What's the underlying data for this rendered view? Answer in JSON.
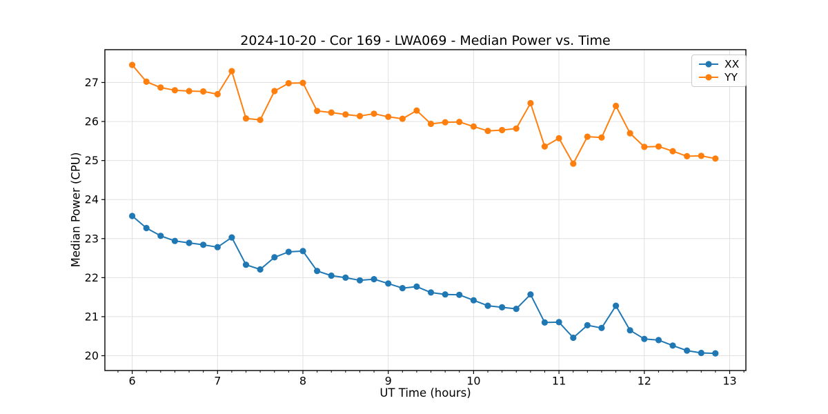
{
  "chart_data": {
    "type": "line",
    "title": "2024-10-20 - Cor 169 - LWA069 - Median Power vs. Time",
    "xlabel": "UT Time (hours)",
    "ylabel": "Median Power (CPU)",
    "xlim": [
      5.68,
      13.19
    ],
    "ylim": [
      19.62,
      27.84
    ],
    "x_major_ticks": [
      6,
      7,
      8,
      9,
      10,
      11,
      12,
      13
    ],
    "y_major_ticks": [
      20,
      21,
      22,
      23,
      24,
      25,
      26,
      27
    ],
    "x_minor_step": 0.1667,
    "grid": true,
    "grid_color": "#e0e0e0",
    "background_color": "#ffffff",
    "legend_position": "upper right",
    "x": [
      6.0,
      6.167,
      6.333,
      6.5,
      6.667,
      6.833,
      7.0,
      7.167,
      7.333,
      7.5,
      7.667,
      7.833,
      8.0,
      8.167,
      8.333,
      8.5,
      8.667,
      8.833,
      9.0,
      9.167,
      9.333,
      9.5,
      9.667,
      9.833,
      10.0,
      10.167,
      10.333,
      10.5,
      10.667,
      10.833,
      11.0,
      11.167,
      11.333,
      11.5,
      11.667,
      11.833,
      12.0,
      12.167,
      12.333,
      12.5,
      12.667,
      12.833
    ],
    "series": [
      {
        "name": "XX",
        "color": "#1f77b4",
        "values": [
          23.58,
          23.27,
          23.07,
          22.94,
          22.89,
          22.84,
          22.78,
          23.03,
          22.33,
          22.21,
          22.52,
          22.66,
          22.68,
          22.17,
          22.05,
          22.0,
          21.93,
          21.96,
          21.85,
          21.73,
          21.77,
          21.62,
          21.57,
          21.56,
          21.42,
          21.28,
          21.24,
          21.2,
          21.57,
          20.85,
          20.86,
          20.46,
          20.78,
          20.71,
          21.28,
          20.65,
          20.43,
          20.4,
          20.26,
          20.13,
          20.07,
          20.06
        ]
      },
      {
        "name": "YY",
        "color": "#ff7f0e",
        "values": [
          27.45,
          27.02,
          26.87,
          26.8,
          26.78,
          26.77,
          26.7,
          27.29,
          26.08,
          26.04,
          26.78,
          26.98,
          26.99,
          26.27,
          26.23,
          26.18,
          26.14,
          26.2,
          26.12,
          26.07,
          26.28,
          25.94,
          25.98,
          25.99,
          25.87,
          25.76,
          25.78,
          25.82,
          26.47,
          25.36,
          25.57,
          24.92,
          25.61,
          25.59,
          26.4,
          25.7,
          25.35,
          25.36,
          25.24,
          25.11,
          25.12,
          25.05
        ]
      }
    ]
  }
}
